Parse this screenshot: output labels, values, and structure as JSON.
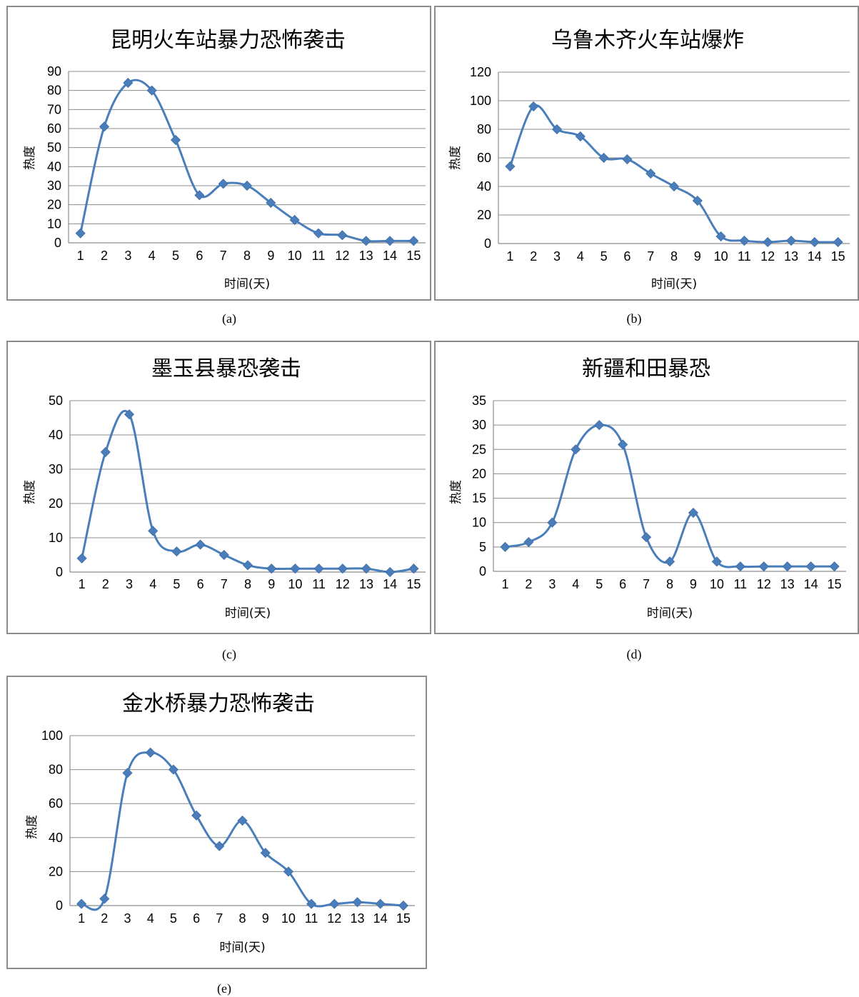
{
  "chart_data": [
    {
      "type": "line",
      "title": "昆明火车站暴力恐怖袭击",
      "xlabel": "时间(天)",
      "ylabel": "热度",
      "caption": "(a)",
      "x": [
        1,
        2,
        3,
        4,
        5,
        6,
        7,
        8,
        9,
        10,
        11,
        12,
        13,
        14,
        15
      ],
      "series": [
        {
          "values": [
            5,
            61,
            84,
            80,
            54,
            25,
            31,
            30,
            21,
            12,
            5,
            4,
            1,
            1,
            1
          ]
        }
      ],
      "ylim": [
        0,
        90
      ],
      "yticks": [
        0,
        10,
        20,
        30,
        40,
        50,
        60,
        70,
        80,
        90
      ],
      "grid": true,
      "color": "#4a7ebb"
    },
    {
      "type": "line",
      "title": "乌鲁木齐火车站爆炸",
      "xlabel": "时间(天)",
      "ylabel": "热度",
      "caption": "(b)",
      "x": [
        1,
        2,
        3,
        4,
        5,
        6,
        7,
        8,
        9,
        10,
        11,
        12,
        13,
        14,
        15
      ],
      "series": [
        {
          "values": [
            54,
            96,
            80,
            75,
            60,
            59,
            49,
            40,
            30,
            5,
            2,
            1,
            2,
            1,
            1
          ]
        }
      ],
      "ylim": [
        0,
        120
      ],
      "yticks": [
        0,
        20,
        40,
        60,
        80,
        100,
        120
      ],
      "grid": true,
      "color": "#4a7ebb"
    },
    {
      "type": "line",
      "title": "墨玉县暴恐袭击",
      "xlabel": "时间(天)",
      "ylabel": "热度",
      "caption": "(c)",
      "x": [
        1,
        2,
        3,
        4,
        5,
        6,
        7,
        8,
        9,
        10,
        11,
        12,
        13,
        14,
        15
      ],
      "series": [
        {
          "values": [
            4,
            35,
            46,
            12,
            6,
            8,
            5,
            2,
            1,
            1,
            1,
            1,
            1,
            0,
            1
          ]
        }
      ],
      "ylim": [
        0,
        50
      ],
      "yticks": [
        0,
        10,
        20,
        30,
        40,
        50
      ],
      "grid": true,
      "color": "#4a7ebb"
    },
    {
      "type": "line",
      "title": "新疆和田暴恐",
      "xlabel": "时间(天)",
      "ylabel": "热度",
      "caption": "(d)",
      "x": [
        1,
        2,
        3,
        4,
        5,
        6,
        7,
        8,
        9,
        10,
        11,
        12,
        13,
        14,
        15
      ],
      "series": [
        {
          "values": [
            5,
            6,
            10,
            25,
            30,
            26,
            7,
            2,
            12,
            2,
            1,
            1,
            1,
            1,
            1
          ]
        }
      ],
      "ylim": [
        0,
        35
      ],
      "yticks": [
        0,
        5,
        10,
        15,
        20,
        25,
        30,
        35
      ],
      "grid": true,
      "color": "#4a7ebb"
    },
    {
      "type": "line",
      "title": "金水桥暴力恐怖袭击",
      "xlabel": "时间(天)",
      "ylabel": "热度",
      "caption": "(e)",
      "x": [
        1,
        2,
        3,
        4,
        5,
        6,
        7,
        8,
        9,
        10,
        11,
        12,
        13,
        14,
        15
      ],
      "series": [
        {
          "values": [
            1,
            4,
            78,
            90,
            80,
            53,
            35,
            50,
            31,
            20,
            1,
            1,
            2,
            1,
            0
          ]
        }
      ],
      "ylim": [
        0,
        100
      ],
      "yticks": [
        0,
        20,
        40,
        60,
        80,
        100
      ],
      "grid": true,
      "color": "#4a7ebb"
    }
  ]
}
